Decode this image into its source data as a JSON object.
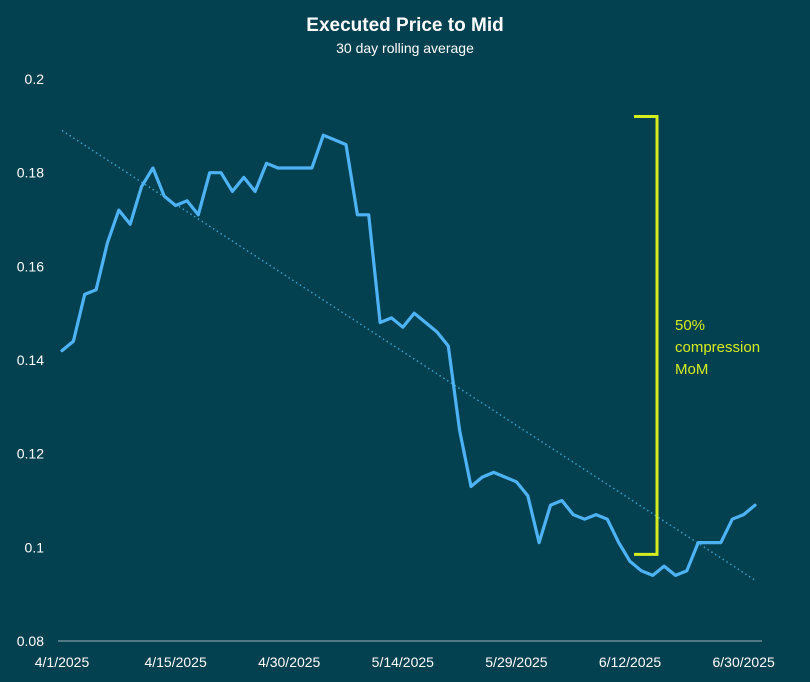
{
  "chart_data": {
    "type": "line",
    "title": "Executed Price to Mid",
    "subtitle": "30 day rolling average",
    "xlabel": "",
    "ylabel": "",
    "x_tick_labels": [
      "4/1/2025",
      "4/15/2025",
      "4/30/2025",
      "5/14/2025",
      "5/29/2025",
      "6/12/2025",
      "6/30/2025"
    ],
    "x_tick_positions": [
      0,
      10,
      20,
      30,
      40,
      50,
      60
    ],
    "ylim": [
      0.08,
      0.2
    ],
    "y_ticks": [
      0.08,
      0.1,
      0.12,
      0.14,
      0.16,
      0.18,
      0.2
    ],
    "y_tick_labels": [
      "0.08",
      "0.1",
      "0.12",
      "0.14",
      "0.16",
      "0.18",
      "0.2"
    ],
    "grid": false,
    "series": [
      {
        "color": "#4db3f5",
        "values": [
          0.142,
          0.144,
          0.154,
          0.155,
          0.165,
          0.172,
          0.169,
          0.177,
          0.181,
          0.175,
          0.173,
          0.174,
          0.171,
          0.18,
          0.18,
          0.176,
          0.179,
          0.176,
          0.182,
          0.181,
          0.181,
          0.181,
          0.181,
          0.188,
          0.187,
          0.186,
          0.171,
          0.171,
          0.148,
          0.149,
          0.147,
          0.15,
          0.148,
          0.146,
          0.143,
          0.125,
          0.113,
          0.115,
          0.116,
          0.115,
          0.114,
          0.111,
          0.101,
          0.109,
          0.11,
          0.107,
          0.106,
          0.107,
          0.106,
          0.101,
          0.097,
          0.095,
          0.094,
          0.096,
          0.094,
          0.095,
          0.101,
          0.101,
          0.101,
          0.106,
          0.107,
          0.109
        ]
      }
    ],
    "trendline": {
      "start": 0.189,
      "end": 0.093,
      "color": "#3a9fc4",
      "style": "dotted"
    },
    "annotation": {
      "lines": [
        "50%",
        "compression",
        "MoM"
      ],
      "color": "#d4ed1f",
      "bracket_top": 0.192,
      "bracket_bottom": 0.0985
    }
  }
}
